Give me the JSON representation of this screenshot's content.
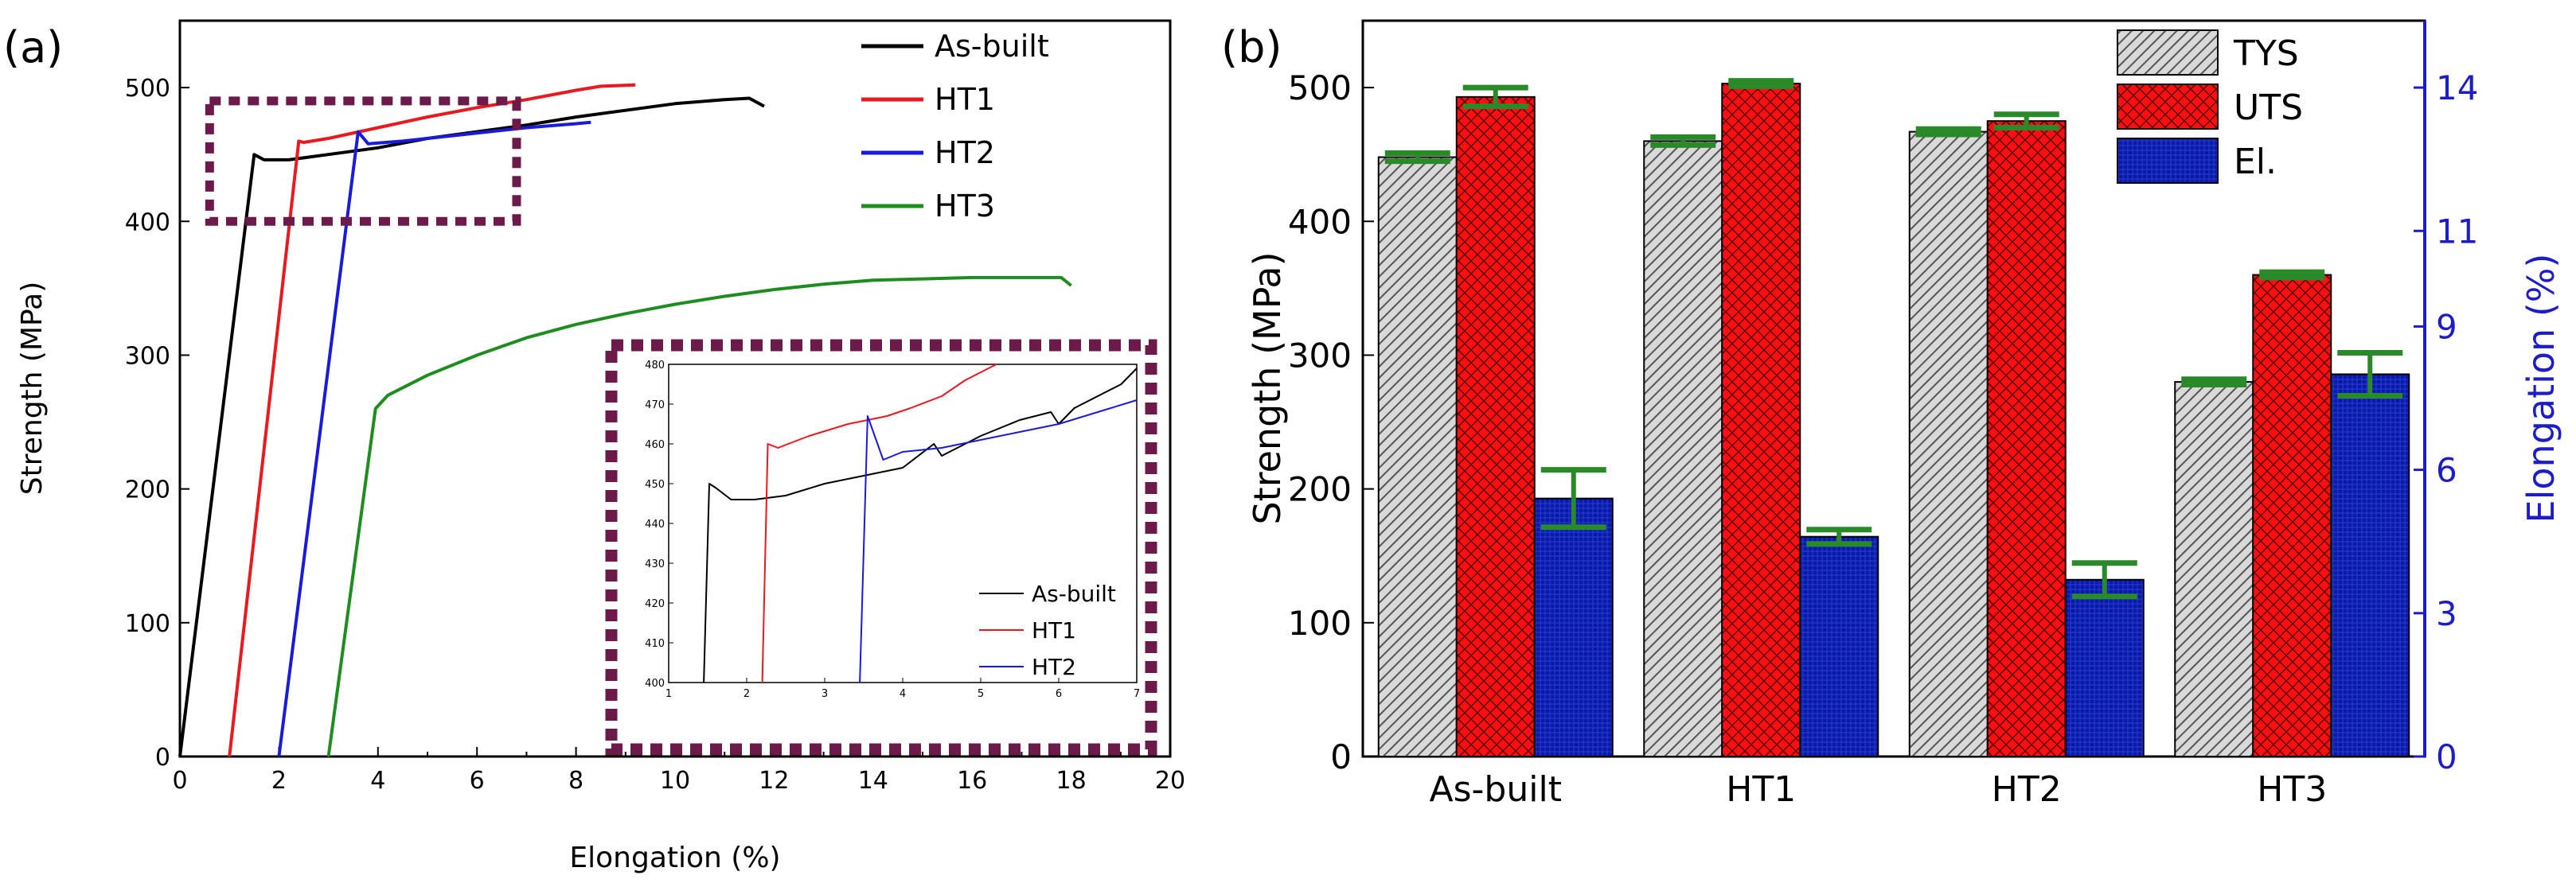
{
  "chart_data": [
    {
      "panel": "(a)",
      "type": "line",
      "xlabel": "Elongation (%)",
      "ylabel": "Strength (MPa)",
      "xlim": [
        0,
        20
      ],
      "ylim": [
        0,
        550
      ],
      "xticks": [
        0,
        2,
        4,
        6,
        8,
        10,
        12,
        14,
        16,
        18,
        20
      ],
      "yticks": [
        0,
        100,
        200,
        300,
        400,
        500
      ],
      "legend_position": "top-right",
      "series": [
        {
          "name": "As-built",
          "color": "#000000",
          "points": [
            [
              0,
              0
            ],
            [
              1.5,
              450
            ],
            [
              1.7,
              446
            ],
            [
              2.2,
              446
            ],
            [
              3,
              450
            ],
            [
              4,
              455
            ],
            [
              5,
              462
            ],
            [
              6,
              467
            ],
            [
              7,
              472
            ],
            [
              8,
              478
            ],
            [
              9,
              483
            ],
            [
              10,
              488
            ],
            [
              11,
              491
            ],
            [
              11.5,
              492
            ],
            [
              11.8,
              486
            ]
          ]
        },
        {
          "name": "HT1",
          "color": "#e8191f",
          "points": [
            [
              1,
              0
            ],
            [
              2.4,
              460
            ],
            [
              2.5,
              459
            ],
            [
              3,
              462
            ],
            [
              4,
              470
            ],
            [
              5,
              478
            ],
            [
              6,
              485
            ],
            [
              7,
              491
            ],
            [
              8,
              498
            ],
            [
              8.5,
              501
            ],
            [
              9.2,
              502
            ]
          ]
        },
        {
          "name": "HT2",
          "color": "#1a1adb",
          "points": [
            [
              2,
              0
            ],
            [
              3.6,
              467
            ],
            [
              3.8,
              458
            ],
            [
              4.5,
              460
            ],
            [
              5,
              462
            ],
            [
              6,
              466
            ],
            [
              7,
              470
            ],
            [
              8,
              473
            ],
            [
              8.3,
              474
            ]
          ]
        },
        {
          "name": "HT3",
          "color": "#1f8c1f",
          "points": [
            [
              3,
              0
            ],
            [
              3.95,
              260
            ],
            [
              4.2,
              270
            ],
            [
              5,
              285
            ],
            [
              6,
              300
            ],
            [
              7,
              313
            ],
            [
              8,
              323
            ],
            [
              9,
              331
            ],
            [
              10,
              338
            ],
            [
              11,
              344
            ],
            [
              12,
              349
            ],
            [
              13,
              353
            ],
            [
              14,
              356
            ],
            [
              15,
              357
            ],
            [
              16,
              358
            ],
            [
              17,
              358
            ],
            [
              17.8,
              358
            ],
            [
              18,
              352
            ]
          ]
        }
      ],
      "zoom_box": {
        "x": [
          0.6,
          6.8
        ],
        "y": [
          400,
          490
        ]
      },
      "inset": {
        "xlim": [
          1,
          7
        ],
        "ylim": [
          400,
          480
        ],
        "xticks": [
          1,
          2,
          3,
          4,
          5,
          6,
          7
        ],
        "yticks": [
          400,
          410,
          420,
          430,
          440,
          450,
          460,
          470,
          480
        ],
        "legend_position": "bottom-right",
        "series": [
          {
            "name": "As-built",
            "color": "#000000",
            "points": [
              [
                1.45,
                400
              ],
              [
                1.52,
                450
              ],
              [
                1.6,
                449
              ],
              [
                1.8,
                446
              ],
              [
                2.1,
                446
              ],
              [
                2.5,
                447
              ],
              [
                3,
                450
              ],
              [
                3.5,
                452
              ],
              [
                4,
                454
              ],
              [
                4.4,
                460
              ],
              [
                4.5,
                457
              ],
              [
                5,
                462
              ],
              [
                5.5,
                466
              ],
              [
                5.9,
                468
              ],
              [
                6,
                465
              ],
              [
                6.2,
                469
              ],
              [
                6.5,
                472
              ],
              [
                6.8,
                475
              ],
              [
                7,
                479
              ]
            ]
          },
          {
            "name": "HT1",
            "color": "#e8191f",
            "points": [
              [
                2.2,
                400
              ],
              [
                2.27,
                460
              ],
              [
                2.4,
                459
              ],
              [
                2.8,
                462
              ],
              [
                3.3,
                465
              ],
              [
                3.8,
                467
              ],
              [
                4.1,
                469
              ],
              [
                4.5,
                472
              ],
              [
                4.8,
                476
              ],
              [
                5.2,
                480
              ]
            ]
          },
          {
            "name": "HT2",
            "color": "#1a1adb",
            "points": [
              [
                3.45,
                400
              ],
              [
                3.55,
                467
              ],
              [
                3.75,
                456
              ],
              [
                4,
                458
              ],
              [
                4.5,
                459
              ],
              [
                5,
                461
              ],
              [
                5.5,
                463
              ],
              [
                6,
                465
              ],
              [
                6.5,
                468
              ],
              [
                7,
                471
              ]
            ]
          }
        ]
      }
    },
    {
      "panel": "(b)",
      "type": "bar",
      "categories": [
        "As-built",
        "HT1",
        "HT2",
        "HT3"
      ],
      "ylabel": "Strength (MPa)",
      "y2label": "Elongation (%)",
      "ylim": [
        0,
        550
      ],
      "y2lim": [
        0,
        15.4
      ],
      "yticks": [
        0,
        100,
        200,
        300,
        400,
        500
      ],
      "y2ticks": [
        0,
        3,
        6,
        9,
        11,
        14
      ],
      "legend_position": "top-right",
      "series": [
        {
          "name": "TYS",
          "axis": "left",
          "color": "#a6a6a6",
          "values": [
            448,
            460,
            467,
            280
          ],
          "errors": [
            3,
            3,
            2,
            2
          ]
        },
        {
          "name": "UTS",
          "axis": "left",
          "color": "#ff0000",
          "values": [
            493,
            503,
            475,
            360
          ],
          "errors": [
            7,
            2,
            5,
            2
          ]
        },
        {
          "name": "El.",
          "axis": "right",
          "color": "#0a1aa8",
          "values": [
            5.4,
            4.6,
            3.7,
            8.0
          ],
          "errors": [
            0.6,
            0.15,
            0.35,
            0.45
          ]
        }
      ]
    }
  ],
  "labels": {
    "panel_a": "(a)",
    "panel_b": "(b)"
  },
  "colors": {
    "error_bar": "#2a8a2a",
    "y2_axis": "#1c1cc8",
    "zoom_box": "#6b1a4a"
  }
}
